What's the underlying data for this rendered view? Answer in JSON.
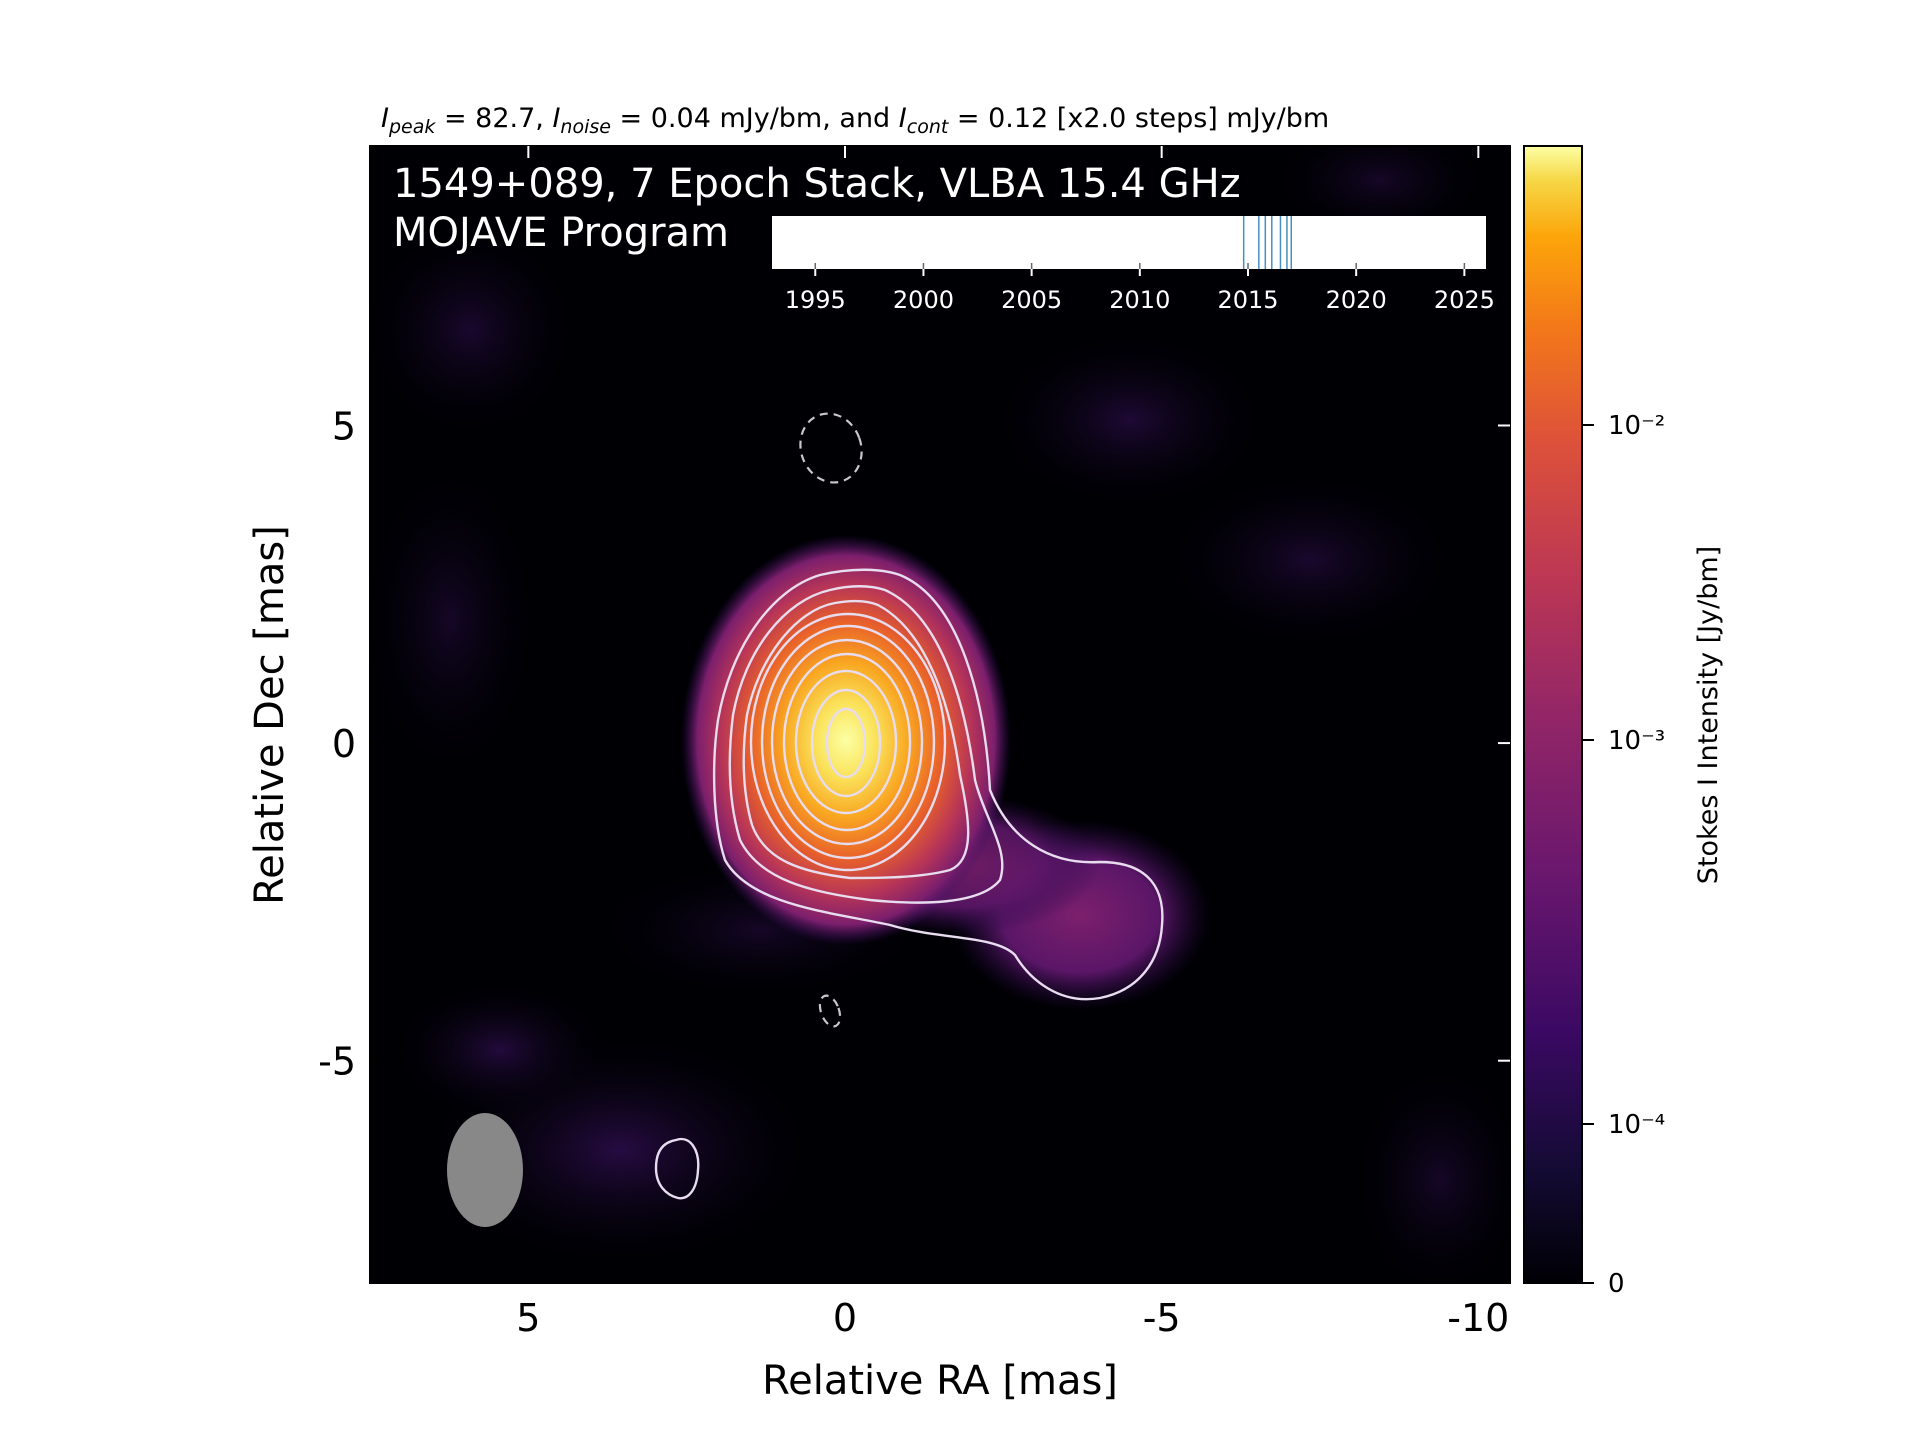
{
  "header": {
    "peak_sym": "I",
    "peak_sub": "peak",
    "peak_rest": " = 82.7, ",
    "noise_sym": "I",
    "noise_sub": "noise",
    "noise_rest": " = 0.04 mJy/bm, and ",
    "cont_sym": "I",
    "cont_sub": "cont",
    "cont_rest": " = 0.12 [x2.0 steps] mJy/bm"
  },
  "overlay": {
    "line1": "1549+089, 7 Epoch Stack, VLBA 15.4 GHz",
    "line2": "MOJAVE Program"
  },
  "chart_data": [
    {
      "type": "heatmap",
      "title": "",
      "xlabel": "Relative RA [mas]",
      "ylabel": "Relative Dec [mas]",
      "xlim": [
        7.5,
        -10.5
      ],
      "ylim": [
        -8.5,
        9.4
      ],
      "xticks": [
        5,
        0,
        -5,
        -10
      ],
      "yticks": [
        5,
        0,
        -5
      ],
      "xtick_labels": [
        "5",
        "0",
        "-5",
        "-10"
      ],
      "ytick_labels": [
        "5",
        "0",
        "-5"
      ],
      "colormap": "inferno",
      "peak_position_mas": [
        0,
        0
      ],
      "jet_feature_position_mas": [
        -4,
        -2.8
      ],
      "beam": {
        "ra_mas": 5.65,
        "dec_mas": -6.8,
        "major_mas": 1.8,
        "minor_mas": 1.2,
        "pa_deg": 0,
        "color": "#888888"
      },
      "colorbar": {
        "label": "Stokes I Intensity [Jy/bm]",
        "ticks": [
          0,
          0.0001,
          0.001,
          0.01
        ],
        "tick_labels": [
          "0",
          "10⁻⁴",
          "10⁻³",
          "10⁻²"
        ]
      },
      "contour_color": "#e8dcef",
      "negative_contour_style": "dashed"
    },
    {
      "type": "timeline",
      "xlim": [
        1993,
        2026
      ],
      "xticks": [
        1995,
        2000,
        2005,
        2010,
        2015,
        2020,
        2025
      ],
      "xtick_labels": [
        "1995",
        "2000",
        "2005",
        "2010",
        "2015",
        "2020",
        "2025"
      ],
      "epochs": [
        2014.8,
        2015.5,
        2015.8,
        2016.1,
        2016.5,
        2016.8,
        2017.0
      ],
      "epoch_color": "#4a8fc0"
    }
  ]
}
